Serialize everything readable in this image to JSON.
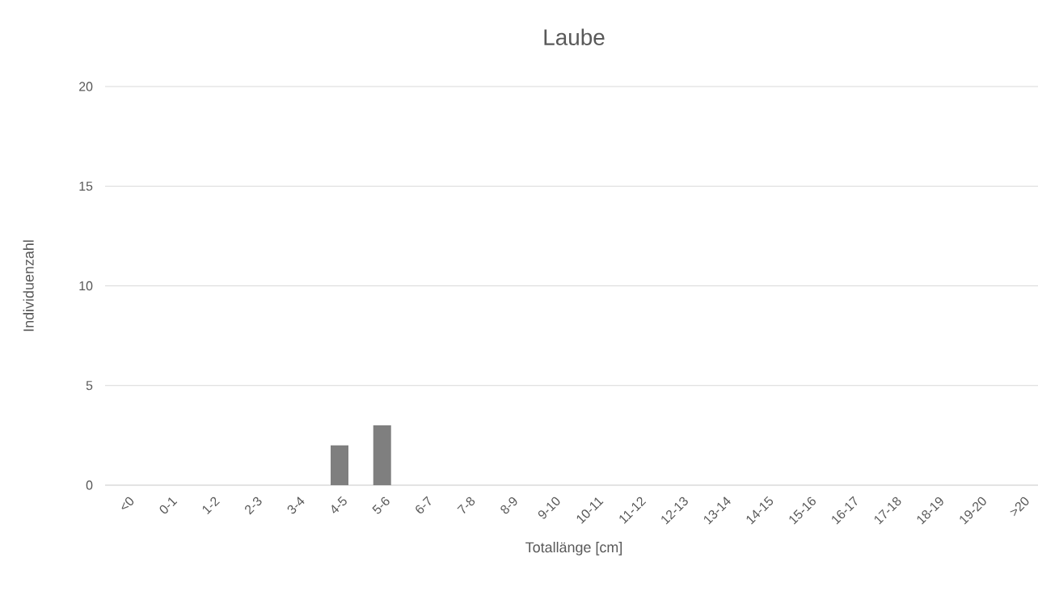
{
  "chart_data": {
    "type": "bar",
    "title": "Laube",
    "xlabel": "Totallänge [cm]",
    "ylabel": "Individuenzahl",
    "categories": [
      "<0",
      "0-1",
      "1-2",
      "2-3",
      "3-4",
      "4-5",
      "5-6",
      "6-7",
      "7-8",
      "8-9",
      "9-10",
      "10-11",
      "11-12",
      "12-13",
      "13-14",
      "14-15",
      "15-16",
      "16-17",
      "17-18",
      "18-19",
      "19-20",
      ">20"
    ],
    "values": [
      0,
      0,
      0,
      0,
      0,
      2,
      3,
      0,
      0,
      0,
      0,
      0,
      0,
      0,
      0,
      0,
      0,
      0,
      0,
      0,
      0,
      0
    ],
    "color": "#7f7f7f",
    "ylim": [
      0,
      20
    ],
    "yticks": [
      0,
      5,
      10,
      15,
      20
    ],
    "grid": "y"
  }
}
